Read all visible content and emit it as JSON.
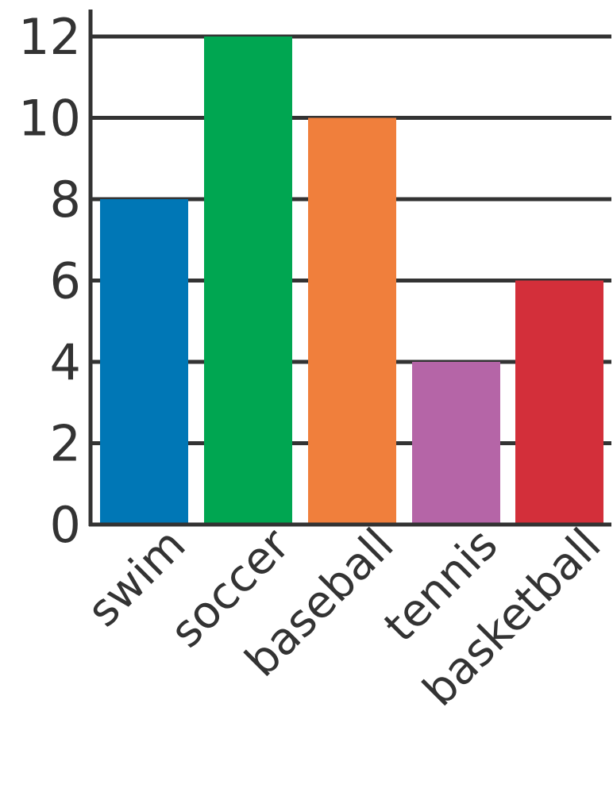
{
  "chart_data": {
    "type": "bar",
    "title": "",
    "xlabel": "",
    "ylabel": "",
    "categories": [
      "swim",
      "soccer",
      "baseball",
      "tennis",
      "basketball"
    ],
    "values": [
      8,
      12,
      10,
      4,
      6
    ],
    "colors": [
      "#0077b6",
      "#00a651",
      "#f07f3c",
      "#b565a7",
      "#d32f3a"
    ],
    "ylim": [
      0,
      12
    ],
    "yticks": [
      0,
      2,
      4,
      6,
      8,
      10,
      12
    ],
    "grid": true,
    "legend": "none"
  }
}
